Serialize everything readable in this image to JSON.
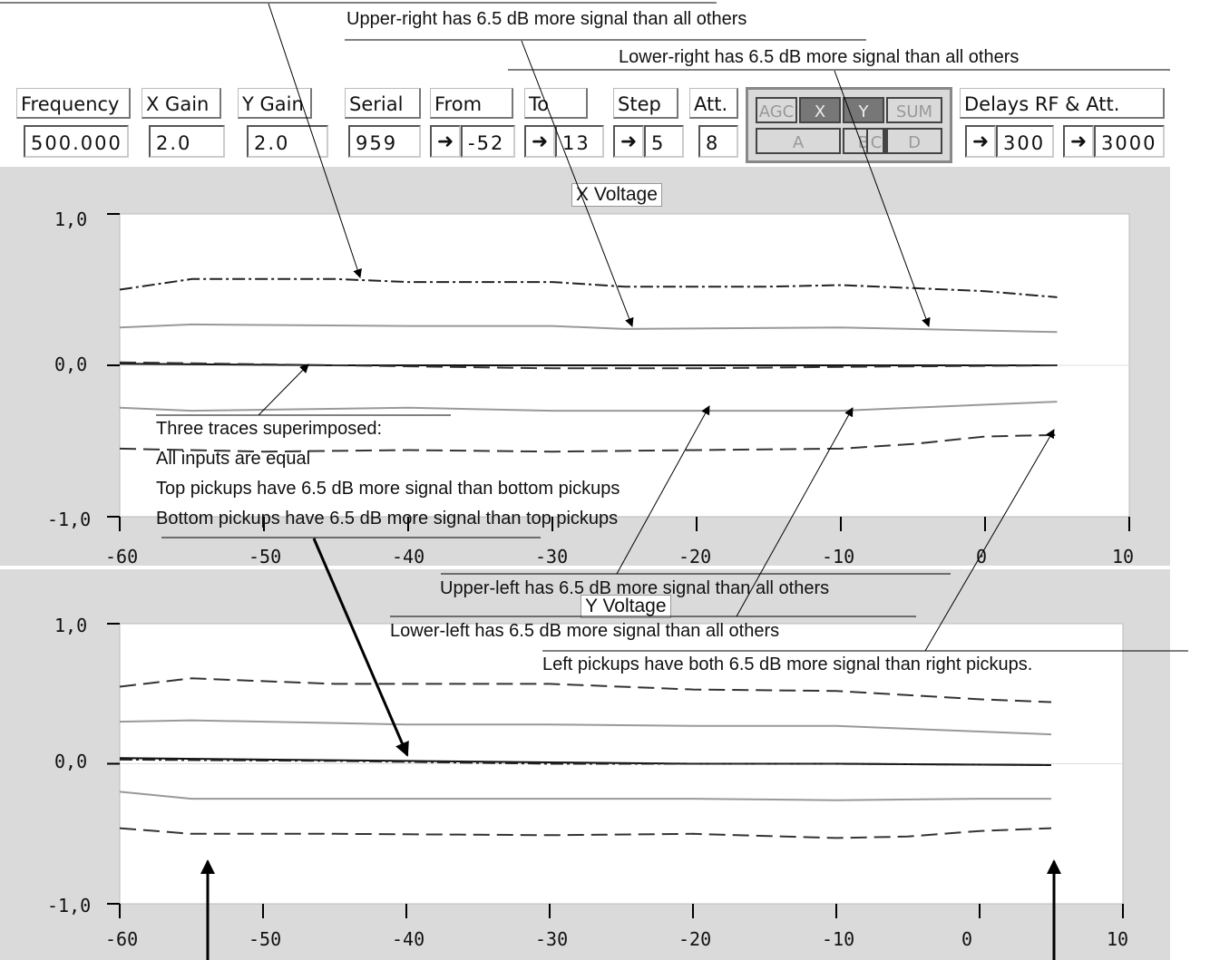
{
  "toolbar": {
    "frequency": {
      "label": "Frequency",
      "value": "500.000"
    },
    "x_gain": {
      "label": "X Gain",
      "value": "2.0"
    },
    "y_gain": {
      "label": "Y Gain",
      "value": "2.0"
    },
    "serial": {
      "label": "Serial",
      "value": "959"
    },
    "from": {
      "label": "From",
      "value": "-52"
    },
    "to": {
      "label": "To",
      "value": "13"
    },
    "step": {
      "label": "Step",
      "value": "5"
    },
    "att": {
      "label": "Att.",
      "value": "8"
    },
    "channel_buttons": {
      "top": [
        "AGC",
        "X",
        "Y",
        "SUM"
      ],
      "bottom": [
        "A",
        "B",
        "C",
        "D"
      ]
    },
    "delays": {
      "label": "Delays RF & Att.",
      "rf_value": "300",
      "att_value": "3000"
    },
    "stepper_icon": "arrow-right-icon"
  },
  "chart_data": [
    {
      "type": "line",
      "title": "X Voltage",
      "xlabel": "",
      "ylabel": "",
      "xlim": [
        -60,
        10
      ],
      "ylim": [
        -1.0,
        1.0
      ],
      "x_tick_labels": [
        "-60",
        "-50",
        "-40",
        "-30",
        "-20",
        "-10",
        "0",
        "10"
      ],
      "y_tick_labels": [
        "1,0",
        "0,0",
        "-1,0"
      ],
      "grid": true,
      "series": [
        {
          "style": "dash-dot",
          "x": [
            -60,
            -55,
            -45,
            -40,
            -30,
            -25,
            -15,
            -10,
            -5,
            0,
            5
          ],
          "y": [
            0.5,
            0.57,
            0.57,
            0.55,
            0.55,
            0.52,
            0.52,
            0.53,
            0.51,
            0.49,
            0.45
          ]
        },
        {
          "style": "solid-gray",
          "x": [
            -60,
            -55,
            -40,
            -30,
            -25,
            -10,
            0,
            5
          ],
          "y": [
            0.25,
            0.27,
            0.26,
            0.26,
            0.24,
            0.25,
            0.23,
            0.22
          ]
        },
        {
          "style": "solid",
          "x": [
            -60,
            -45,
            -30,
            -10,
            5
          ],
          "y": [
            0.01,
            0.0,
            0.0,
            0.0,
            0.0
          ]
        },
        {
          "style": "dashed",
          "x": [
            -60,
            -45,
            -30,
            -20,
            -10,
            5
          ],
          "y": [
            0.02,
            0.0,
            -0.02,
            -0.02,
            -0.01,
            0.0
          ]
        },
        {
          "style": "solid-gray",
          "x": [
            -60,
            -55,
            -40,
            -30,
            -20,
            -10,
            0,
            5
          ],
          "y": [
            -0.28,
            -0.3,
            -0.28,
            -0.3,
            -0.3,
            -0.3,
            -0.26,
            -0.24
          ]
        },
        {
          "style": "dashed",
          "x": [
            -60,
            -50,
            -40,
            -30,
            -20,
            -10,
            -5,
            0,
            5
          ],
          "y": [
            -0.55,
            -0.57,
            -0.56,
            -0.57,
            -0.56,
            -0.55,
            -0.52,
            -0.47,
            -0.46
          ]
        }
      ]
    },
    {
      "type": "line",
      "title": "Y Voltage",
      "xlabel": "",
      "ylabel": "",
      "xlim": [
        -60,
        10
      ],
      "ylim": [
        -1.0,
        1.0
      ],
      "x_tick_labels": [
        "-60",
        "-50",
        "-40",
        "-30",
        "-20",
        "-10",
        "0",
        "10"
      ],
      "y_tick_labels": [
        "1,0",
        "0,0",
        "-1,0"
      ],
      "grid": true,
      "series": [
        {
          "style": "dashed",
          "x": [
            -60,
            -55,
            -45,
            -30,
            -20,
            -10,
            0,
            5
          ],
          "y": [
            0.55,
            0.61,
            0.57,
            0.57,
            0.53,
            0.52,
            0.46,
            0.44
          ]
        },
        {
          "style": "solid-gray",
          "x": [
            -60,
            -55,
            -40,
            -30,
            -20,
            -10,
            0,
            5
          ],
          "y": [
            0.3,
            0.31,
            0.28,
            0.28,
            0.27,
            0.27,
            0.23,
            0.21
          ]
        },
        {
          "style": "solid",
          "x": [
            -60,
            -50,
            -40,
            -30,
            -20,
            -10,
            5
          ],
          "y": [
            0.04,
            0.03,
            0.02,
            0.01,
            0.0,
            0.0,
            -0.01
          ]
        },
        {
          "style": "dash-dot",
          "x": [
            -60,
            -45,
            -30,
            -10,
            5
          ],
          "y": [
            0.03,
            0.02,
            0.0,
            0.0,
            -0.01
          ]
        },
        {
          "style": "solid-gray",
          "x": [
            -60,
            -55,
            -40,
            -30,
            -20,
            -10,
            0,
            5
          ],
          "y": [
            -0.2,
            -0.25,
            -0.25,
            -0.25,
            -0.25,
            -0.26,
            -0.25,
            -0.25
          ]
        },
        {
          "style": "dashed",
          "x": [
            -60,
            -55,
            -45,
            -30,
            -20,
            -10,
            -5,
            0,
            5
          ],
          "y": [
            -0.46,
            -0.5,
            -0.5,
            -0.51,
            -0.5,
            -0.53,
            -0.52,
            -0.48,
            -0.46
          ]
        }
      ]
    }
  ],
  "annotations": {
    "upper_right": "Upper-right has 6.5 dB more signal than all others",
    "lower_right": "Lower-right has 6.5 dB more signal than all others",
    "three_traces": [
      "Three traces superimposed:",
      "All inputs are equal",
      "Top pickups have 6.5 dB more signal than bottom pickups",
      "Bottom pickups have 6.5 dB more signal than top pickups"
    ],
    "upper_left": "Upper-left has 6.5 dB more signal than all others",
    "lower_left": "Lower-left has 6.5 dB more signal than all others",
    "left_pickups": "Left pickups have both 6.5 dB more signal than right pickups."
  }
}
